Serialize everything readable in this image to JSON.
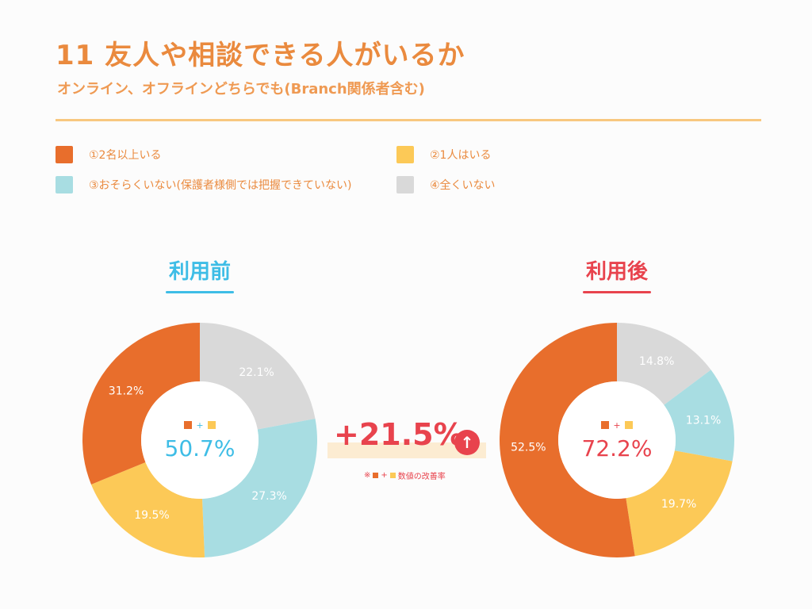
{
  "header": {
    "title": "11 友人や相談できる人がいるか",
    "subtitle": "オンライン、オフラインどちらでも(Branch関係者含む)"
  },
  "colors": {
    "orange": "#e86e2c",
    "yellow": "#fcc957",
    "cyan": "#a8dde2",
    "gray": "#d9d9d9",
    "before_accent": "#3ebde6",
    "after_accent": "#e8434d",
    "title": "#ea8a3e"
  },
  "legend": [
    {
      "label": "①2名以上いる",
      "color": "#e86e2c"
    },
    {
      "label": "②1人はいる",
      "color": "#fcc957"
    },
    {
      "label": "③おそらくいない(保護者様側では把握できていない)",
      "color": "#a8dde2"
    },
    {
      "label": "④全くいない",
      "color": "#d9d9d9"
    }
  ],
  "improvement": {
    "value": "+21.5%",
    "arrow": "↑",
    "note_prefix": "※",
    "note_plus": "+",
    "note_suffix": "数値の改善率"
  },
  "chart_data": [
    {
      "type": "pie",
      "title": "利用前",
      "categories": [
        "①2名以上いる",
        "②1人はいる",
        "③おそらくいない(保護者様側では把握できていない)",
        "④全くいない"
      ],
      "values": [
        31.2,
        19.5,
        27.3,
        22.1
      ],
      "labels": [
        "31.2%",
        "19.5%",
        "27.3%",
        "22.1%"
      ],
      "center_value": "50.7%",
      "center_plus": "+"
    },
    {
      "type": "pie",
      "title": "利用後",
      "categories": [
        "①2名以上いる",
        "②1人はいる",
        "③おそらくいない(保護者様側では把握できていない)",
        "④全くいない"
      ],
      "values": [
        52.5,
        19.7,
        13.1,
        14.8
      ],
      "labels": [
        "52.5%",
        "19.7%",
        "13.1%",
        "14.8%"
      ],
      "center_value": "72.2%",
      "center_plus": "+"
    }
  ]
}
